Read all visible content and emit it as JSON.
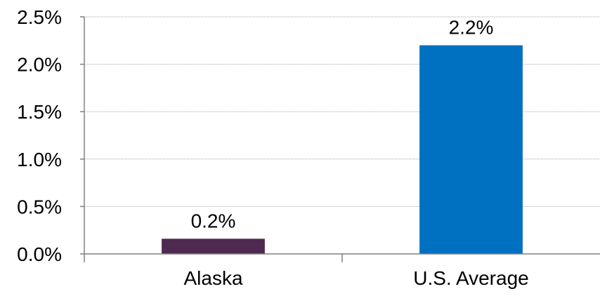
{
  "chart_data": {
    "type": "bar",
    "title": "",
    "xlabel": "",
    "ylabel": "",
    "categories": [
      "Alaska",
      "U.S. Average"
    ],
    "values": [
      0.16,
      2.2
    ],
    "data_labels": [
      "0.2%",
      "2.2%"
    ],
    "bar_colors": [
      "#4e2a50",
      "#0070c0"
    ],
    "ylim": [
      0,
      2.5
    ],
    "yticks": [
      0,
      0.5,
      1.0,
      1.5,
      2.0,
      2.5
    ],
    "ytick_labels": [
      "0.0%",
      "0.5%",
      "1.0%",
      "1.5%",
      "2.0%",
      "2.5%"
    ],
    "grid": true,
    "legend": "none"
  }
}
